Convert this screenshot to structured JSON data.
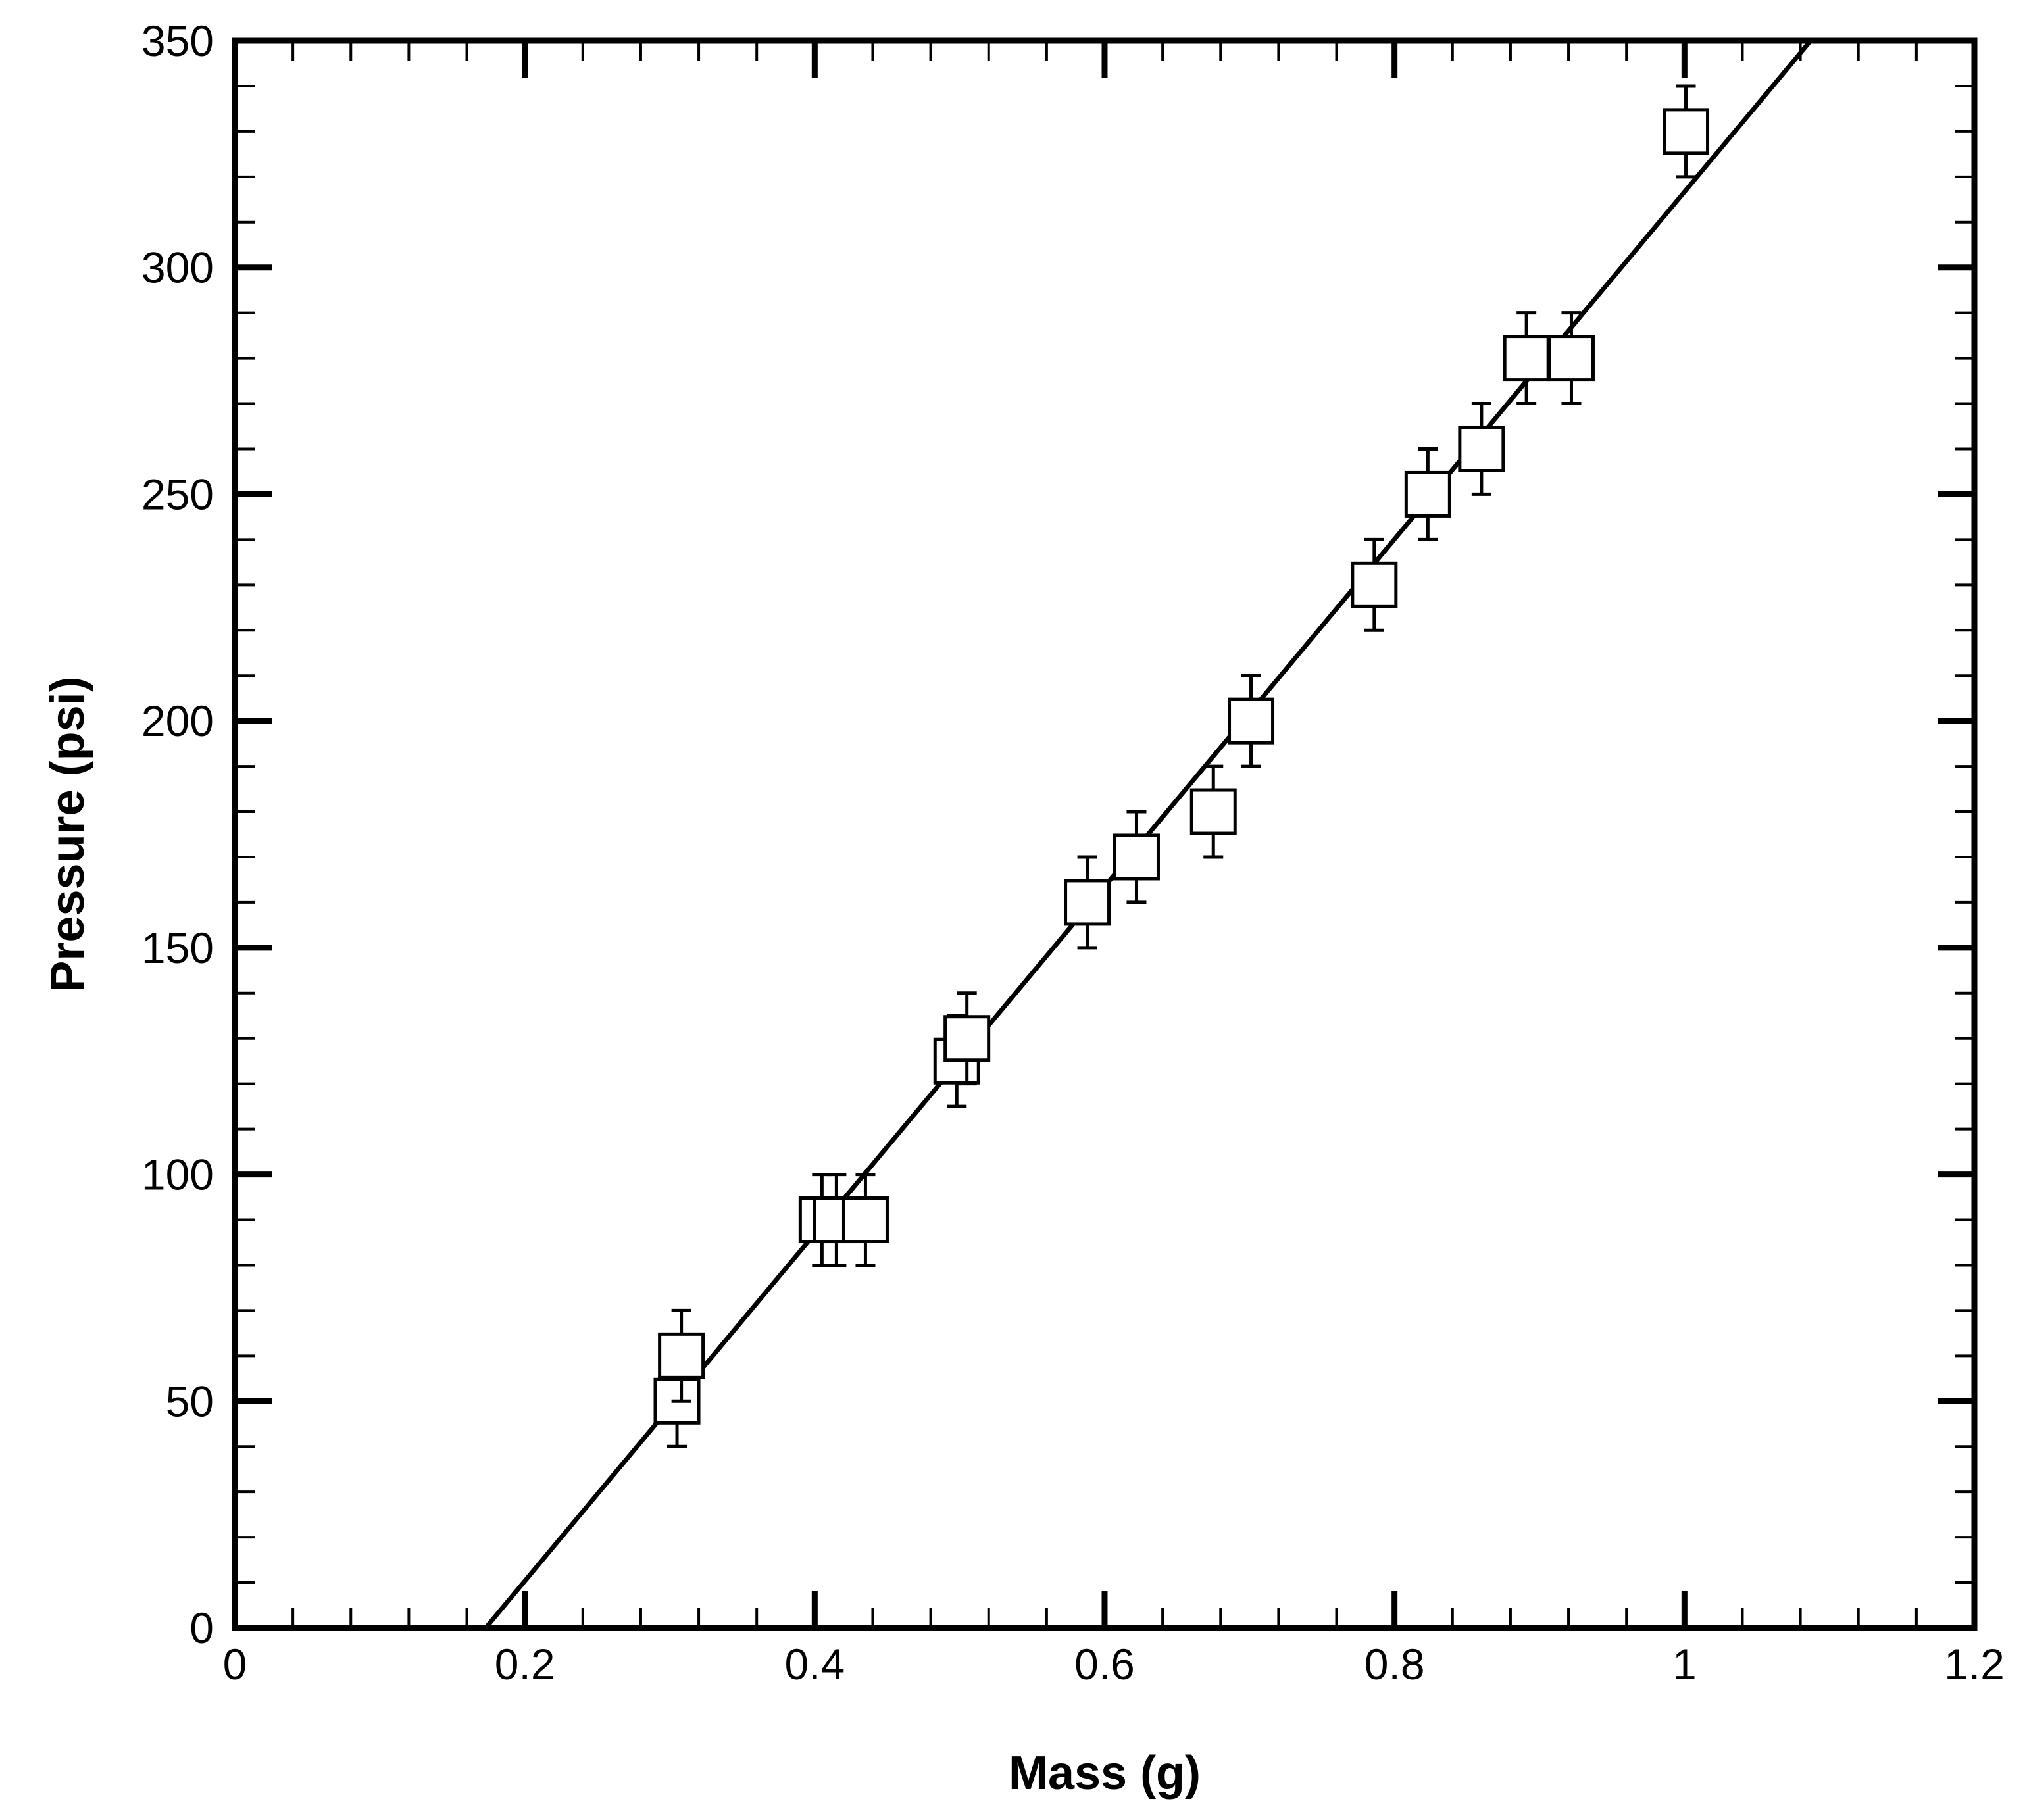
{
  "chart_data": {
    "type": "scatter",
    "xlabel": "Mass (g)",
    "ylabel": "Pressure (psi)",
    "xlim": [
      0,
      1.2
    ],
    "ylim": [
      0,
      350
    ],
    "x_ticks": [
      {
        "value": 0,
        "label": "0"
      },
      {
        "value": 0.2,
        "label": "0.2"
      },
      {
        "value": 0.4,
        "label": "0.4"
      },
      {
        "value": 0.6,
        "label": "0.6"
      },
      {
        "value": 0.8,
        "label": "0.8"
      },
      {
        "value": 1.0,
        "label": "1"
      },
      {
        "value": 1.2,
        "label": "1.2"
      }
    ],
    "y_ticks": [
      {
        "value": 0,
        "label": "0"
      },
      {
        "value": 50,
        "label": "50"
      },
      {
        "value": 100,
        "label": "100"
      },
      {
        "value": 150,
        "label": "150"
      },
      {
        "value": 200,
        "label": "200"
      },
      {
        "value": 250,
        "label": "250"
      },
      {
        "value": 300,
        "label": "300"
      },
      {
        "value": 350,
        "label": "350"
      }
    ],
    "x_minor_step": 0.04,
    "y_minor_step": 10,
    "grid": false,
    "marker": "open-square",
    "error": 10,
    "points": [
      {
        "x": 0.305,
        "y": 50
      },
      {
        "x": 0.308,
        "y": 60
      },
      {
        "x": 0.405,
        "y": 90
      },
      {
        "x": 0.415,
        "y": 90
      },
      {
        "x": 0.435,
        "y": 90
      },
      {
        "x": 0.498,
        "y": 125
      },
      {
        "x": 0.505,
        "y": 130
      },
      {
        "x": 0.588,
        "y": 160
      },
      {
        "x": 0.622,
        "y": 170
      },
      {
        "x": 0.675,
        "y": 180
      },
      {
        "x": 0.701,
        "y": 200
      },
      {
        "x": 0.786,
        "y": 230
      },
      {
        "x": 0.823,
        "y": 250
      },
      {
        "x": 0.86,
        "y": 260
      },
      {
        "x": 0.891,
        "y": 280
      },
      {
        "x": 0.922,
        "y": 280
      },
      {
        "x": 1.001,
        "y": 330
      }
    ],
    "fit_line": {
      "x0": 0.173,
      "y0": 0,
      "x1": 1.087,
      "y1": 350
    }
  },
  "colors": {
    "ink": "#000000",
    "background": "#ffffff"
  }
}
